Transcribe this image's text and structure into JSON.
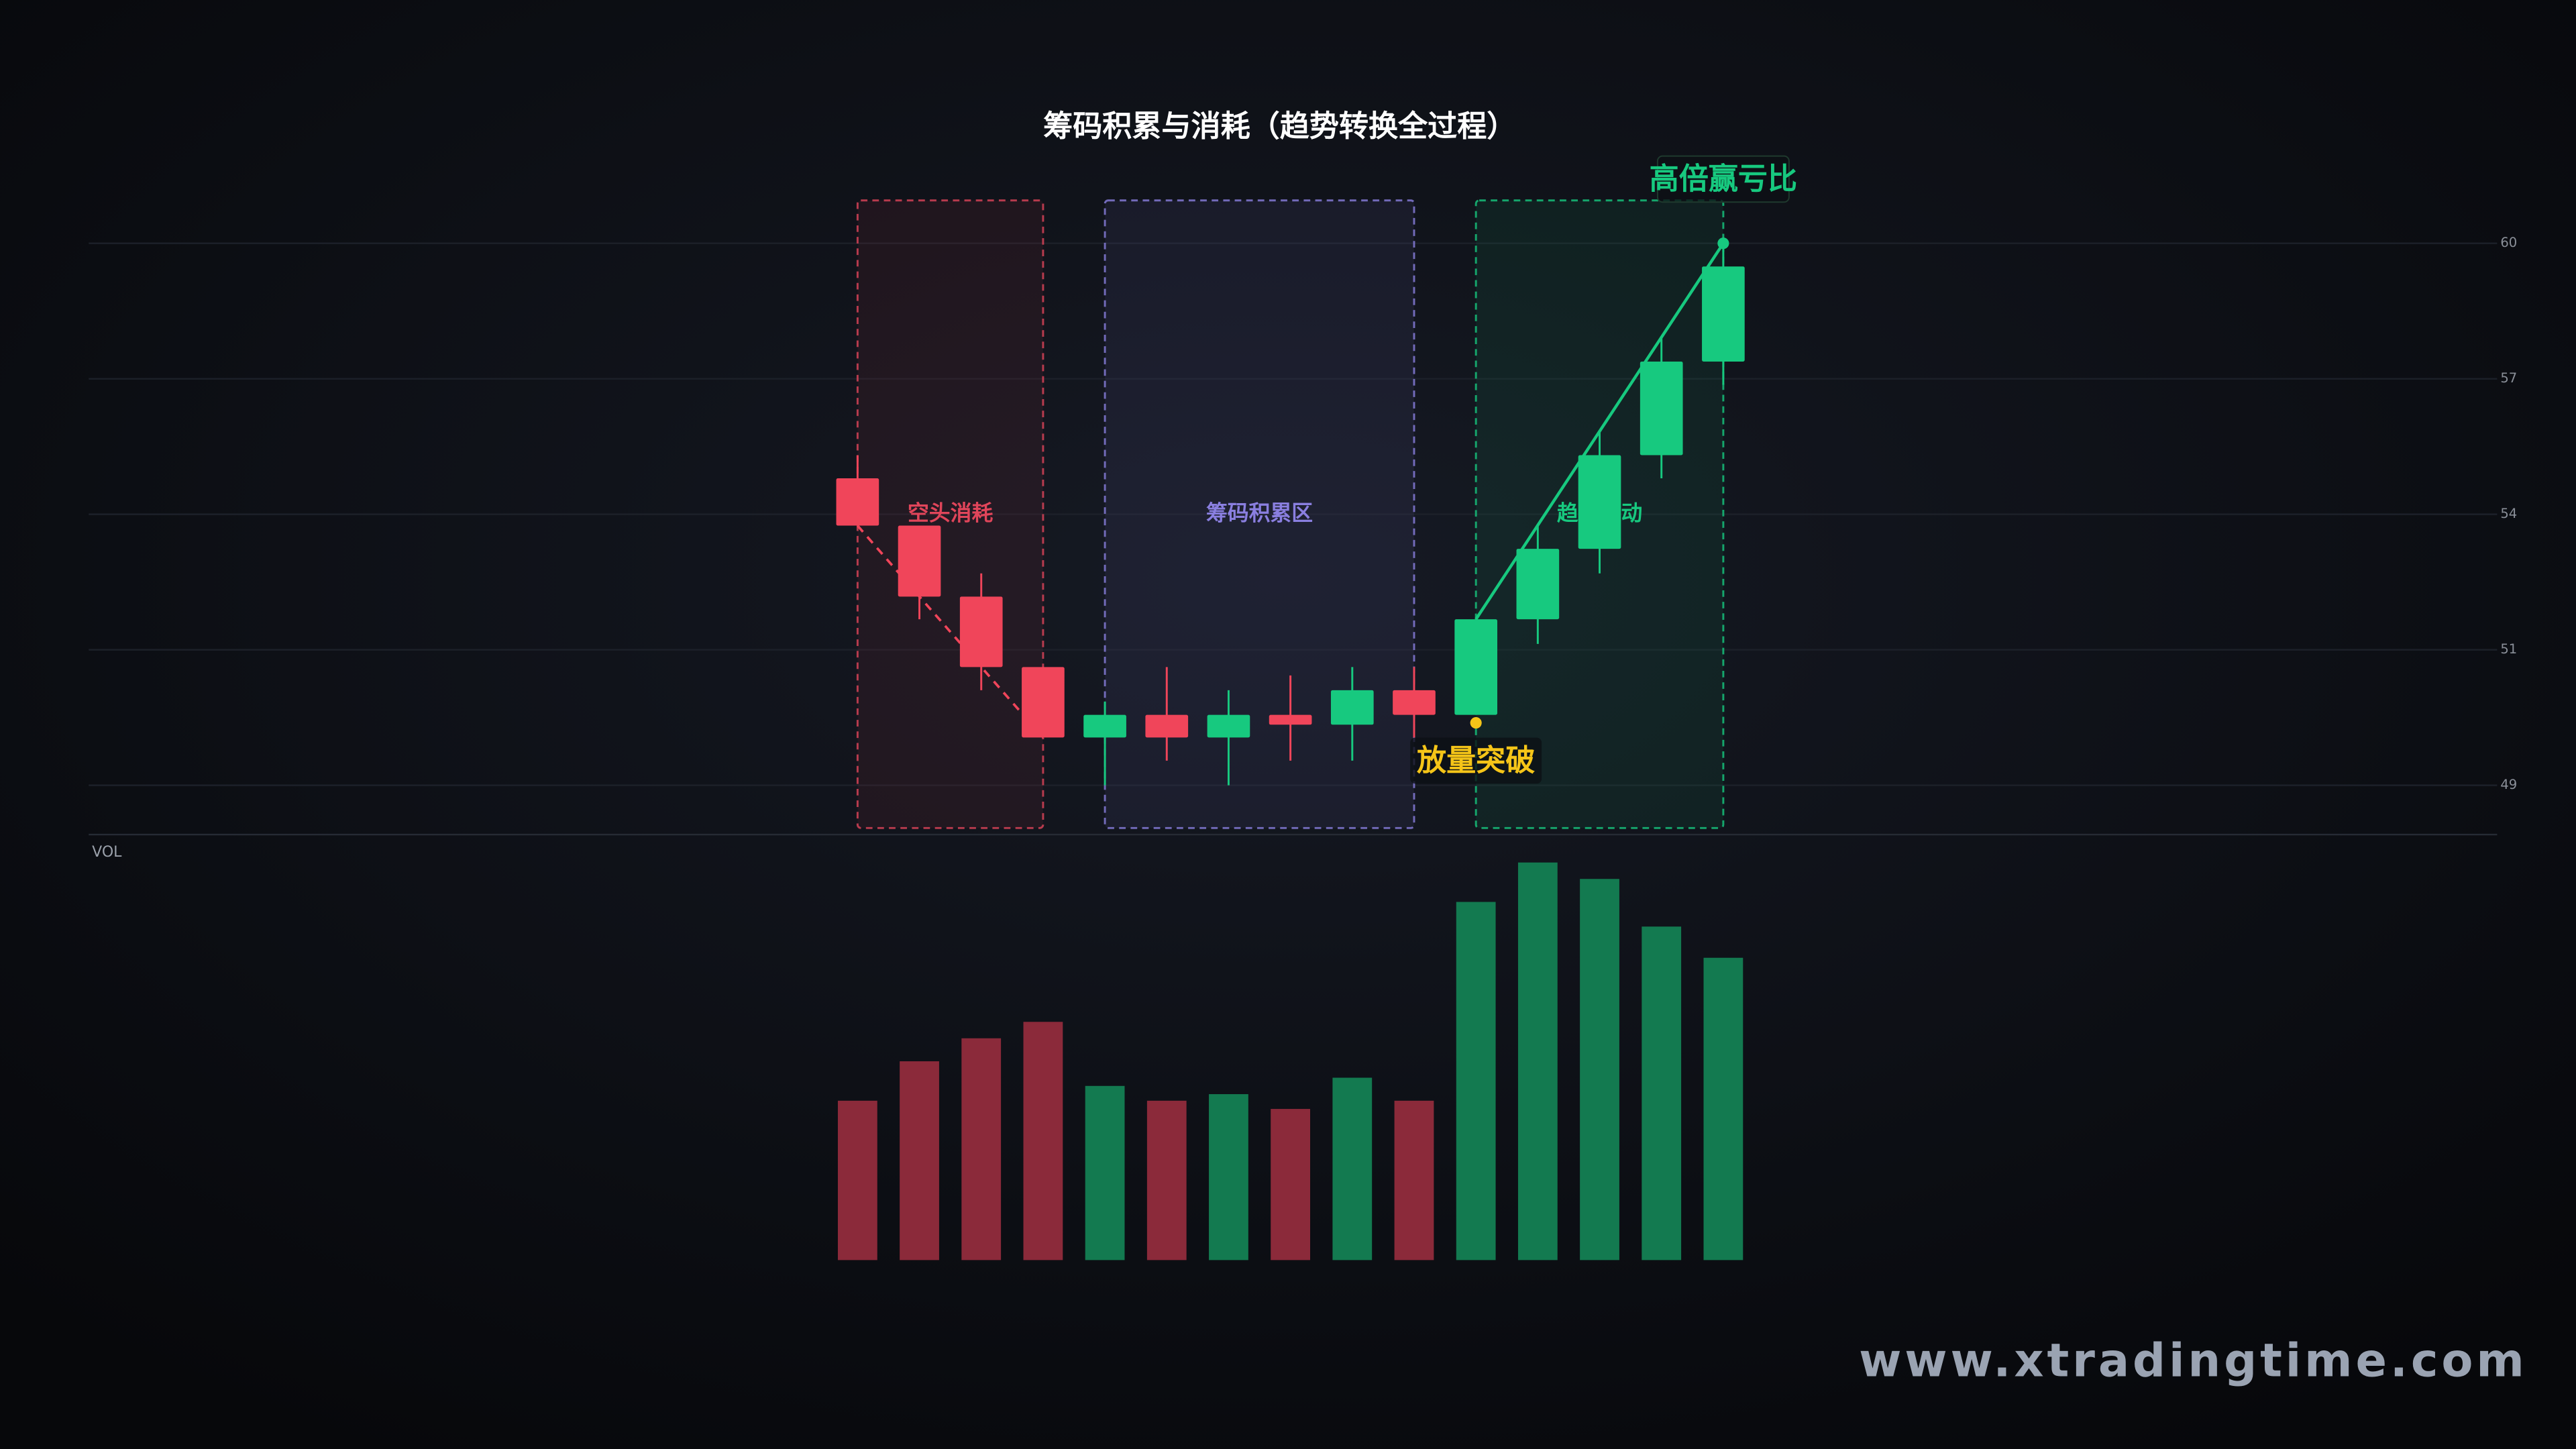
{
  "chart_data": {
    "type": "candlestick",
    "title": "筹码积累与消耗（趋势转换全过程）",
    "volume_label": "VOL",
    "ylim": [
      47.6,
      60.47
    ],
    "yticks": [
      {
        "value": 48.6,
        "label": "49"
      },
      {
        "value": 51.35,
        "label": "51"
      },
      {
        "value": 54.1,
        "label": "54"
      },
      {
        "value": 56.85,
        "label": "57"
      },
      {
        "value": 59.6,
        "label": "60"
      }
    ],
    "grid": true,
    "up_color": "#17c97f",
    "down_color": "#f0455a",
    "volume_up_color": "#137a50",
    "volume_down_color": "#8b2a3a",
    "series": {
      "open": [
        54.83,
        53.87,
        52.43,
        51.0,
        49.57,
        50.03,
        49.57,
        50.03,
        49.83,
        50.53,
        50.03,
        51.97,
        53.4,
        55.3,
        57.2
      ],
      "high": [
        55.3,
        53.87,
        52.9,
        51.0,
        50.3,
        51.0,
        50.53,
        50.83,
        51.0,
        51.0,
        51.97,
        53.87,
        55.77,
        57.67,
        59.6
      ],
      "low": [
        53.87,
        51.97,
        50.53,
        49.57,
        48.6,
        49.1,
        48.6,
        49.1,
        49.1,
        49.57,
        50.03,
        51.47,
        52.9,
        54.83,
        56.73
      ],
      "close": [
        53.87,
        52.43,
        51.0,
        49.57,
        50.03,
        49.57,
        50.03,
        49.83,
        50.53,
        50.03,
        51.97,
        53.4,
        55.3,
        57.2,
        59.13
      ],
      "volume": [
        97,
        121,
        135,
        145,
        106,
        97,
        101,
        92,
        111,
        97,
        218,
        242,
        232,
        203,
        184
      ]
    },
    "zones": [
      {
        "label": "空头消耗",
        "color": "#e0455a"
      },
      {
        "label": "筹码积累区",
        "color": "#8a7fe0"
      },
      {
        "label": "趋势启动",
        "color": "#17c97f"
      }
    ],
    "annotations": [
      {
        "text": "放量突破",
        "color": "#f5c518"
      },
      {
        "text": "高倍赢亏比",
        "color": "#17c97f"
      }
    ],
    "watermark": "www.xtradingtime.com"
  }
}
